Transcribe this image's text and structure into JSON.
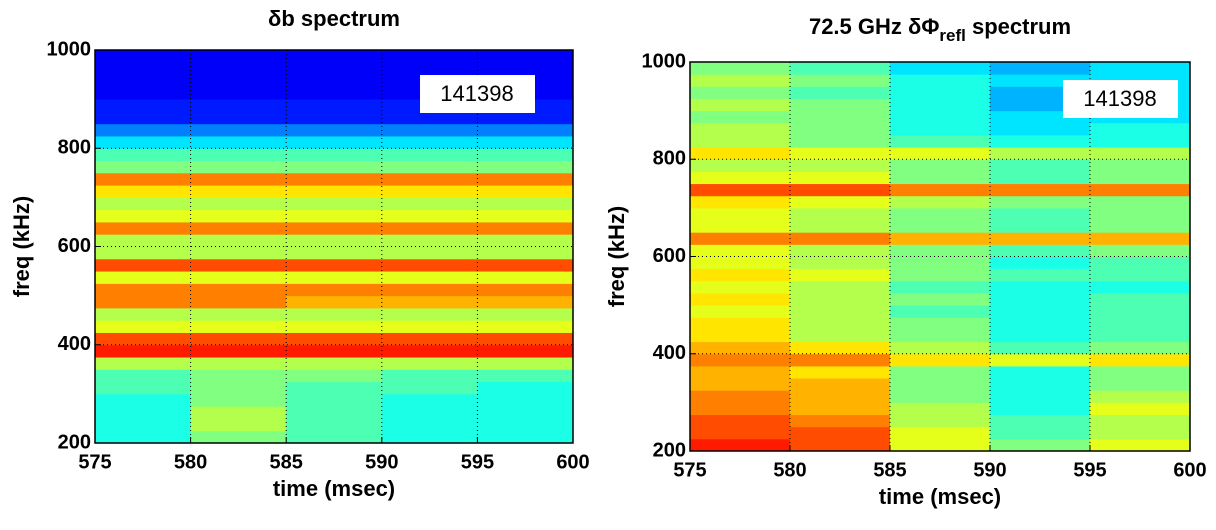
{
  "chart_data": [
    {
      "type": "heatmap",
      "title_parts": [
        "δb spectrum"
      ],
      "xlabel": "time (msec)",
      "ylabel": "freq (kHz)",
      "annotation": "141398",
      "xlim": [
        575,
        600
      ],
      "ylim": [
        200,
        1000
      ],
      "xticks": [
        575,
        580,
        585,
        590,
        595,
        600
      ],
      "yticks": [
        200,
        400,
        600,
        800,
        1000
      ],
      "grid": true,
      "xbins": [
        575,
        580,
        585,
        590,
        595,
        600
      ],
      "ybins": [
        200,
        225,
        250,
        275,
        300,
        325,
        350,
        375,
        400,
        425,
        450,
        475,
        500,
        525,
        550,
        575,
        600,
        625,
        650,
        675,
        700,
        725,
        750,
        775,
        800,
        825,
        850,
        875,
        900,
        925,
        950,
        975,
        1000
      ],
      "z": [
        [
          0.4,
          0.5,
          0.45,
          0.4,
          0.4
        ],
        [
          0.4,
          0.55,
          0.45,
          0.4,
          0.4
        ],
        [
          0.4,
          0.55,
          0.45,
          0.4,
          0.4
        ],
        [
          0.4,
          0.5,
          0.45,
          0.4,
          0.4
        ],
        [
          0.45,
          0.5,
          0.45,
          0.45,
          0.4
        ],
        [
          0.45,
          0.5,
          0.5,
          0.45,
          0.45
        ],
        [
          0.55,
          0.55,
          0.55,
          0.55,
          0.55
        ],
        [
          0.85,
          0.85,
          0.85,
          0.85,
          0.85
        ],
        [
          0.8,
          0.8,
          0.8,
          0.8,
          0.8
        ],
        [
          0.6,
          0.6,
          0.6,
          0.6,
          0.6
        ],
        [
          0.55,
          0.55,
          0.55,
          0.55,
          0.55
        ],
        [
          0.75,
          0.75,
          0.7,
          0.7,
          0.7
        ],
        [
          0.75,
          0.75,
          0.75,
          0.75,
          0.75
        ],
        [
          0.6,
          0.6,
          0.6,
          0.6,
          0.6
        ],
        [
          0.8,
          0.8,
          0.8,
          0.8,
          0.8
        ],
        [
          0.55,
          0.55,
          0.55,
          0.55,
          0.55
        ],
        [
          0.55,
          0.55,
          0.55,
          0.55,
          0.55
        ],
        [
          0.75,
          0.75,
          0.75,
          0.75,
          0.75
        ],
        [
          0.6,
          0.6,
          0.6,
          0.6,
          0.6
        ],
        [
          0.55,
          0.55,
          0.55,
          0.55,
          0.55
        ],
        [
          0.65,
          0.65,
          0.65,
          0.65,
          0.65
        ],
        [
          0.75,
          0.75,
          0.75,
          0.75,
          0.75
        ],
        [
          0.5,
          0.5,
          0.5,
          0.5,
          0.5
        ],
        [
          0.45,
          0.45,
          0.45,
          0.45,
          0.45
        ],
        [
          0.35,
          0.35,
          0.35,
          0.35,
          0.35
        ],
        [
          0.25,
          0.25,
          0.25,
          0.25,
          0.25
        ],
        [
          0.15,
          0.15,
          0.15,
          0.15,
          0.15
        ],
        [
          0.15,
          0.15,
          0.15,
          0.15,
          0.15
        ],
        [
          0.12,
          0.12,
          0.12,
          0.12,
          0.12
        ],
        [
          0.12,
          0.12,
          0.12,
          0.12,
          0.12
        ],
        [
          0.12,
          0.12,
          0.12,
          0.12,
          0.12
        ],
        [
          0.12,
          0.12,
          0.12,
          0.12,
          0.12
        ]
      ]
    },
    {
      "type": "heatmap",
      "title_parts": [
        "72.5 GHz δΦ",
        "refl",
        " spectrum"
      ],
      "xlabel": "time (msec)",
      "ylabel": "freq (kHz)",
      "annotation": "141398",
      "xlim": [
        575,
        600
      ],
      "ylim": [
        200,
        1000
      ],
      "xticks": [
        575,
        580,
        585,
        590,
        595,
        600
      ],
      "yticks": [
        200,
        400,
        600,
        800,
        1000
      ],
      "grid": true,
      "xbins": [
        575,
        580,
        585,
        590,
        595,
        600
      ],
      "ybins": [
        200,
        225,
        250,
        275,
        300,
        325,
        350,
        375,
        400,
        425,
        450,
        475,
        500,
        525,
        550,
        575,
        600,
        625,
        650,
        675,
        700,
        725,
        750,
        775,
        800,
        825,
        850,
        875,
        900,
        925,
        950,
        975,
        1000
      ],
      "z": [
        [
          0.85,
          0.8,
          0.6,
          0.5,
          0.6
        ],
        [
          0.8,
          0.8,
          0.6,
          0.45,
          0.55
        ],
        [
          0.8,
          0.75,
          0.55,
          0.45,
          0.55
        ],
        [
          0.75,
          0.7,
          0.55,
          0.4,
          0.6
        ],
        [
          0.75,
          0.7,
          0.5,
          0.4,
          0.55
        ],
        [
          0.7,
          0.7,
          0.5,
          0.4,
          0.5
        ],
        [
          0.7,
          0.65,
          0.5,
          0.4,
          0.5
        ],
        [
          0.75,
          0.75,
          0.65,
          0.6,
          0.65
        ],
        [
          0.7,
          0.65,
          0.55,
          0.45,
          0.5
        ],
        [
          0.65,
          0.55,
          0.5,
          0.4,
          0.45
        ],
        [
          0.65,
          0.55,
          0.5,
          0.4,
          0.45
        ],
        [
          0.6,
          0.55,
          0.45,
          0.4,
          0.45
        ],
        [
          0.65,
          0.55,
          0.5,
          0.4,
          0.45
        ],
        [
          0.6,
          0.55,
          0.45,
          0.4,
          0.4
        ],
        [
          0.65,
          0.6,
          0.5,
          0.45,
          0.45
        ],
        [
          0.6,
          0.55,
          0.5,
          0.4,
          0.45
        ],
        [
          0.6,
          0.55,
          0.5,
          0.45,
          0.5
        ],
        [
          0.75,
          0.75,
          0.7,
          0.7,
          0.7
        ],
        [
          0.6,
          0.55,
          0.5,
          0.45,
          0.5
        ],
        [
          0.6,
          0.55,
          0.5,
          0.45,
          0.5
        ],
        [
          0.65,
          0.6,
          0.55,
          0.5,
          0.5
        ],
        [
          0.8,
          0.8,
          0.75,
          0.75,
          0.75
        ],
        [
          0.6,
          0.6,
          0.5,
          0.45,
          0.5
        ],
        [
          0.55,
          0.55,
          0.5,
          0.45,
          0.5
        ],
        [
          0.65,
          0.6,
          0.6,
          0.55,
          0.55
        ],
        [
          0.55,
          0.5,
          0.45,
          0.4,
          0.4
        ],
        [
          0.55,
          0.5,
          0.4,
          0.35,
          0.4
        ],
        [
          0.5,
          0.5,
          0.4,
          0.35,
          0.35
        ],
        [
          0.55,
          0.5,
          0.4,
          0.3,
          0.35
        ],
        [
          0.5,
          0.45,
          0.4,
          0.3,
          0.35
        ],
        [
          0.55,
          0.5,
          0.4,
          0.35,
          0.35
        ],
        [
          0.5,
          0.45,
          0.35,
          0.3,
          0.35
        ]
      ]
    }
  ]
}
